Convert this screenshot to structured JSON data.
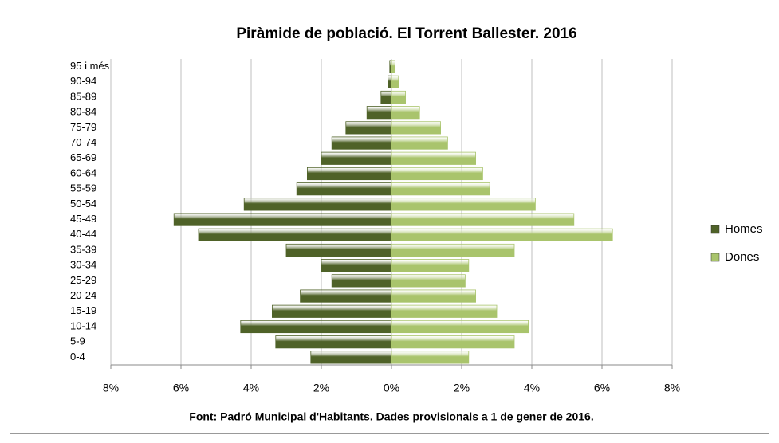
{
  "chart_data": {
    "type": "pyramid",
    "title": "Piràmide de població. El Torrent Ballester. 2016",
    "source": "Font: Padró Municipal  d'Habitants. Dades provisionals  a 1 de gener de 2016.",
    "categories": [
      "0-4",
      "5-9",
      "10-14",
      "15-19",
      "20-24",
      "25-29",
      "30-34",
      "35-39",
      "40-44",
      "45-49",
      "50-54",
      "55-59",
      "60-64",
      "65-69",
      "70-74",
      "75-79",
      "80-84",
      "85-89",
      "90-94",
      "95 i més"
    ],
    "series": [
      {
        "name": "Homes",
        "color": "#4f6228",
        "values": [
          -2.3,
          -3.3,
          -4.3,
          -3.4,
          -2.6,
          -1.7,
          -2.0,
          -3.0,
          -5.5,
          -6.2,
          -4.2,
          -2.7,
          -2.4,
          -2.0,
          -1.7,
          -1.3,
          -0.7,
          -0.3,
          -0.1,
          -0.05
        ]
      },
      {
        "name": "Dones",
        "color": "#a9c46c",
        "values": [
          2.2,
          3.5,
          3.9,
          3.0,
          2.4,
          2.1,
          2.2,
          3.5,
          6.3,
          5.2,
          4.1,
          2.8,
          2.6,
          2.4,
          1.6,
          1.4,
          0.8,
          0.4,
          0.2,
          0.1
        ]
      }
    ],
    "xlim": [
      -8,
      8
    ],
    "xticks": [
      {
        "value": -8,
        "label": "8%"
      },
      {
        "value": -6,
        "label": "6%"
      },
      {
        "value": -4,
        "label": "4%"
      },
      {
        "value": -2,
        "label": "2%"
      },
      {
        "value": 0,
        "label": "0%"
      },
      {
        "value": 2,
        "label": "2%"
      },
      {
        "value": 4,
        "label": "4%"
      },
      {
        "value": 6,
        "label": "6%"
      },
      {
        "value": 8,
        "label": "8%"
      }
    ],
    "grid": true,
    "legend": "right"
  }
}
